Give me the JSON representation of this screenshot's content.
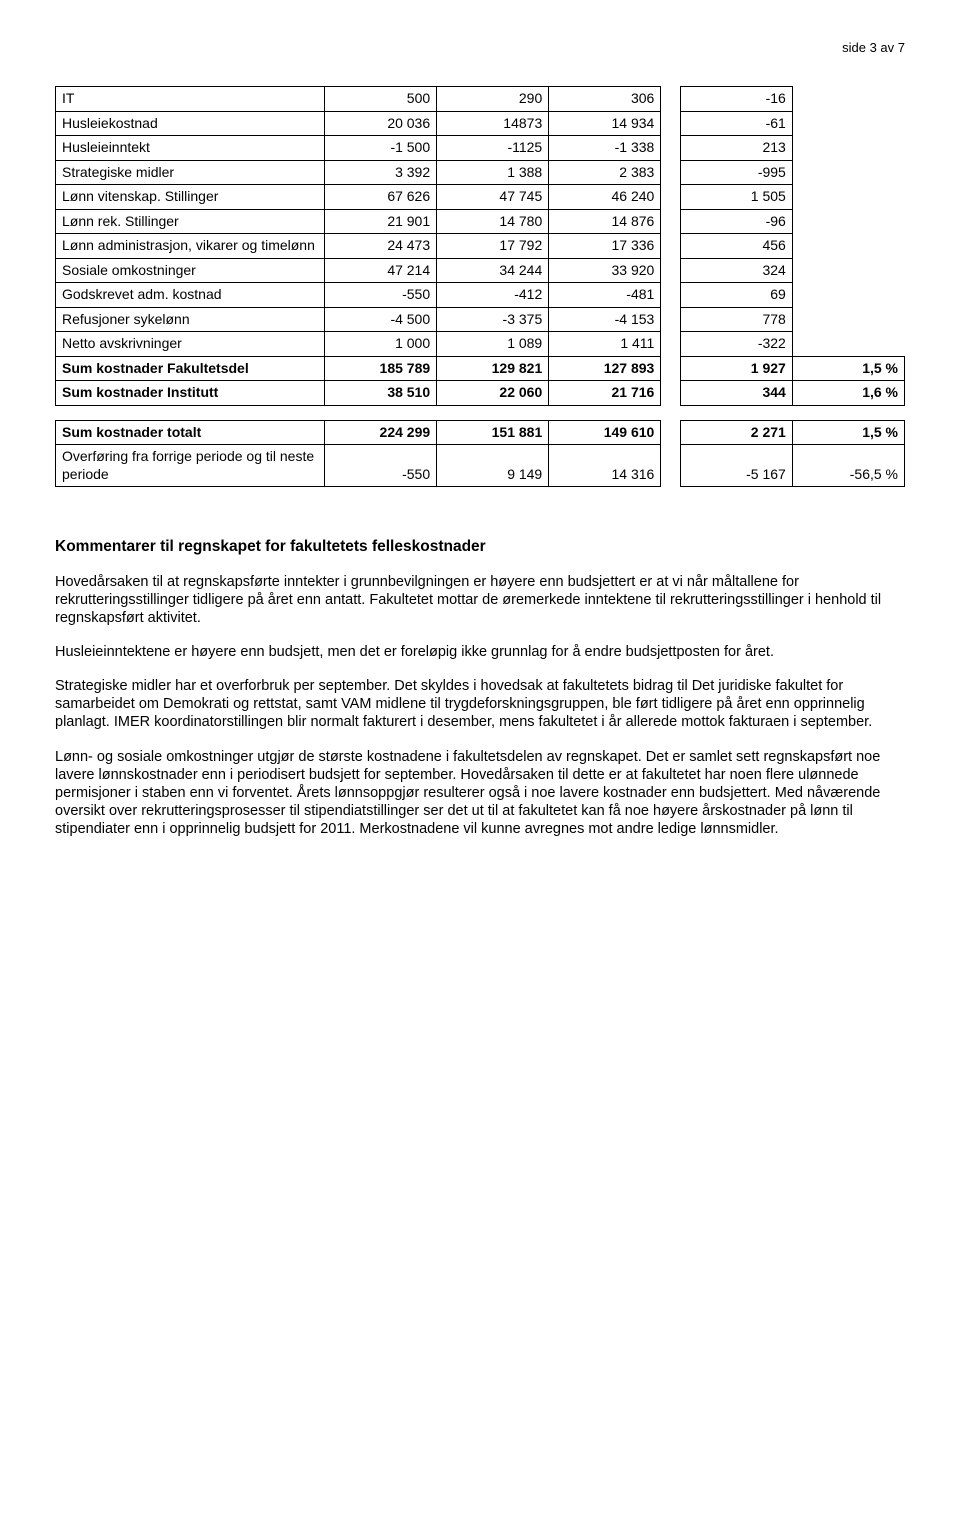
{
  "header": {
    "page_label": "side 3 av 7"
  },
  "table1": {
    "rows": [
      {
        "label": "IT",
        "c1": "500",
        "c2": "290",
        "c3": "306",
        "c4": "-16",
        "c5": "",
        "bold": false
      },
      {
        "label": "Husleiekostnad",
        "c1": "20 036",
        "c2": "14873",
        "c3": "14 934",
        "c4": "-61",
        "c5": "",
        "bold": false
      },
      {
        "label": "Husleieinntekt",
        "c1": "-1 500",
        "c2": "-1125",
        "c3": "-1 338",
        "c4": "213",
        "c5": "",
        "bold": false
      },
      {
        "label": "Strategiske midler",
        "c1": "3 392",
        "c2": "1 388",
        "c3": "2 383",
        "c4": "-995",
        "c5": "",
        "bold": false
      },
      {
        "label": "Lønn vitenskap. Stillinger",
        "c1": "67 626",
        "c2": "47 745",
        "c3": "46 240",
        "c4": "1 505",
        "c5": "",
        "bold": false
      },
      {
        "label": "Lønn rek. Stillinger",
        "c1": "21 901",
        "c2": "14 780",
        "c3": "14 876",
        "c4": "-96",
        "c5": "",
        "bold": false
      },
      {
        "label": "Lønn administrasjon, vikarer og timelønn",
        "c1": "24 473",
        "c2": "17 792",
        "c3": "17 336",
        "c4": "456",
        "c5": "",
        "bold": false
      },
      {
        "label": "Sosiale omkostninger",
        "c1": "47 214",
        "c2": "34 244",
        "c3": "33 920",
        "c4": "324",
        "c5": "",
        "bold": false
      },
      {
        "label": "Godskrevet adm. kostnad",
        "c1": "-550",
        "c2": "-412",
        "c3": "-481",
        "c4": "69",
        "c5": "",
        "bold": false
      },
      {
        "label": "Refusjoner sykelønn",
        "c1": "-4 500",
        "c2": "-3 375",
        "c3": "-4 153",
        "c4": "778",
        "c5": "",
        "bold": false
      },
      {
        "label": "Netto avskrivninger",
        "c1": "1 000",
        "c2": "1 089",
        "c3": "1 411",
        "c4": "-322",
        "c5": "",
        "bold": false
      },
      {
        "label": "Sum kostnader Fakultetsdel",
        "c1": "185 789",
        "c2": "129 821",
        "c3": "127 893",
        "c4": "1 927",
        "c5": "1,5 %",
        "bold": true
      },
      {
        "label": "Sum kostnader Institutt",
        "c1": "38 510",
        "c2": "22 060",
        "c3": "21 716",
        "c4": "344",
        "c5": "1,6 %",
        "bold": true
      }
    ]
  },
  "table2": {
    "rows": [
      {
        "label": "Sum kostnader totalt",
        "c1": "224 299",
        "c2": "151 881",
        "c3": "149 610",
        "c4": "2 271",
        "c5": "1,5 %",
        "bold": true
      },
      {
        "label": "Overføring fra forrige periode og til neste periode",
        "c1": "-550",
        "c2": "9 149",
        "c3": "14 316",
        "c4": "-5 167",
        "c5": "-56,5 %",
        "bold": false
      }
    ]
  },
  "section_title": "Kommentarer til regnskapet for fakultetets felleskostnader",
  "paragraphs": [
    "Hovedårsaken til at regnskapsførte inntekter i grunnbevilgningen er høyere enn budsjettert er at vi når måltallene for rekrutteringsstillinger tidligere på året enn antatt. Fakultetet mottar de øremerkede inntektene til rekrutteringsstillinger i henhold til regnskapsført aktivitet.",
    "Husleieinntektene er høyere enn budsjett, men det er foreløpig ikke grunnlag for å endre budsjettposten for året.",
    "Strategiske midler har et overforbruk per september. Det skyldes i hovedsak at fakultetets bidrag til Det juridiske fakultet for samarbeidet om Demokrati og rettstat, samt VAM midlene til trygdeforskningsgruppen, ble ført tidligere på året enn opprinnelig planlagt. IMER koordinatorstillingen blir normalt fakturert i desember, mens fakultetet i år allerede mottok fakturaen i september.",
    "Lønn- og sosiale omkostninger utgjør de største kostnadene i fakultetsdelen av regnskapet. Det er samlet sett regnskapsført noe lavere lønnskostnader enn i periodisert budsjett for september. Hovedårsaken til dette er at fakultetet har noen flere ulønnede permisjoner i staben enn vi forventet. Årets lønnsoppgjør resulterer også i noe lavere kostnader enn budsjettert.  Med nåværende oversikt over rekrutteringsprosesser til stipendiatstillinger ser det ut til at fakultetet kan få noe høyere årskostnader på lønn til stipendiater enn i opprinnelig budsjett for 2011. Merkostnadene vil kunne avregnes mot andre ledige lønnsmidler."
  ]
}
